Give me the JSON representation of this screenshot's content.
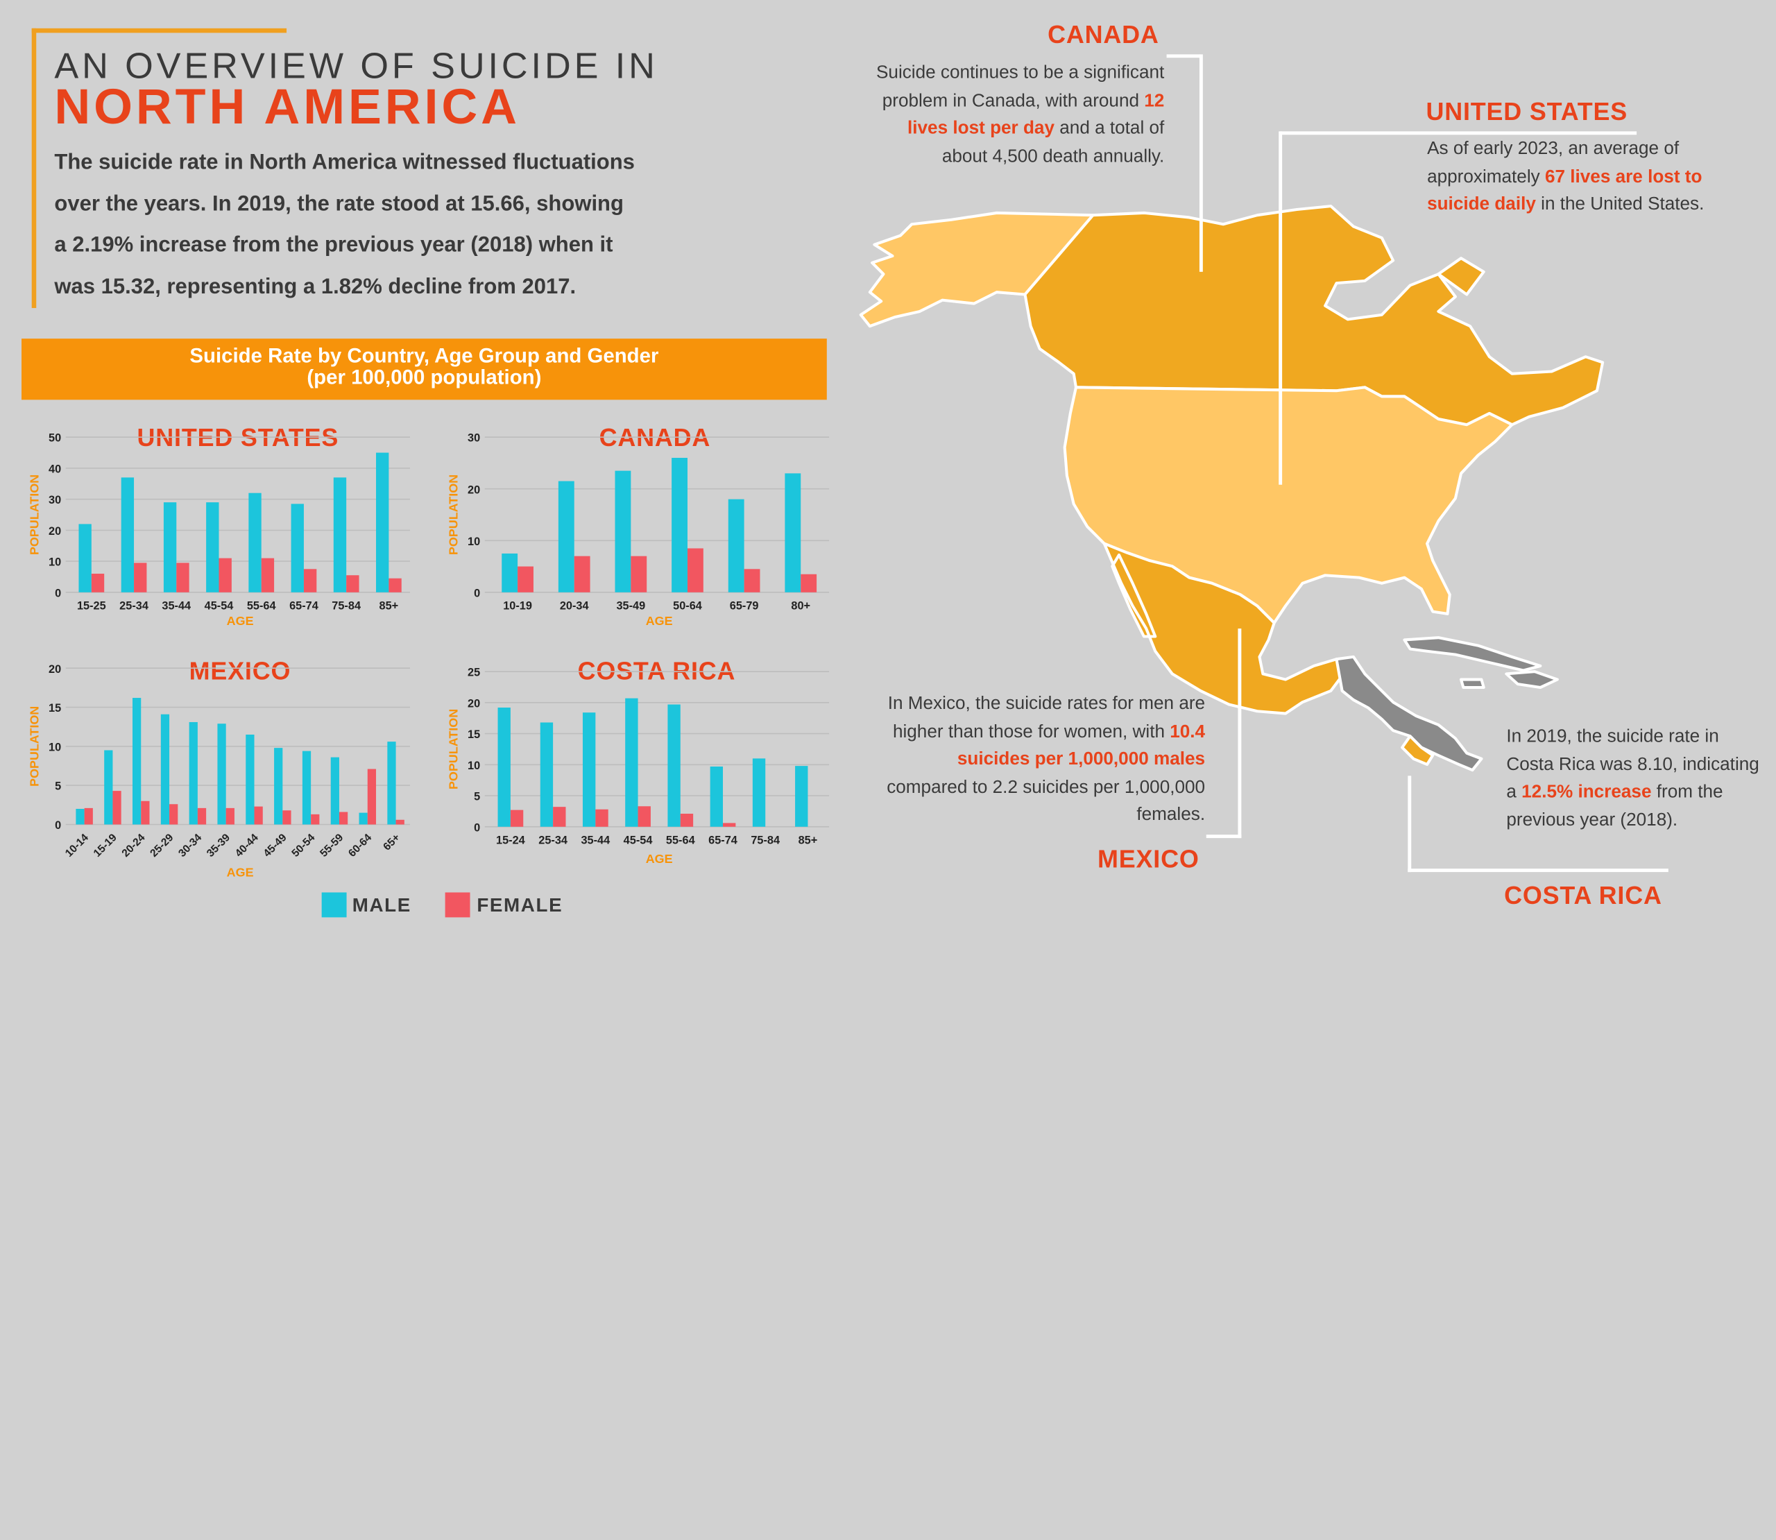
{
  "header": {
    "title_line1": "AN OVERVIEW OF SUICIDE IN",
    "title_line2": "NORTH AMERICA",
    "intro_lines": [
      "The suicide rate in North America witnessed fluctuations",
      "over the years. In 2019, the rate stood at 15.66, showing",
      "a 2.19% increase from the previous year (2018) when it",
      "was 15.32, representing a 1.82% decline from 2017."
    ]
  },
  "banner": {
    "line1": "Suicide Rate by Country, Age Group and Gender",
    "line2": "(per 100,000 population)"
  },
  "colors": {
    "male": "#1cc5dc",
    "female": "#f25660",
    "accent": "#e8431b",
    "orange": "#f7930a",
    "map_dark": "#f0a820",
    "map_light": "#ffc765",
    "map_gray": "#8a8a8a"
  },
  "legend": {
    "male": "MALE",
    "female": "FEMALE"
  },
  "chart_data": [
    {
      "type": "bar",
      "title": "UNITED STATES",
      "xlabel": "AGE",
      "ylabel": "POPULATION",
      "ylim": [
        0,
        50
      ],
      "yticks": [
        "0",
        "10",
        "20",
        "30",
        "40",
        "50"
      ],
      "categories": [
        "15-25",
        "25-34",
        "35-44",
        "45-54",
        "55-64",
        "65-74",
        "75-84",
        "85+"
      ],
      "series": [
        {
          "name": "MALE",
          "values": [
            22,
            37,
            29,
            29,
            32,
            28.5,
            37,
            45
          ]
        },
        {
          "name": "FEMALE",
          "values": [
            6,
            9.5,
            9.5,
            11,
            11,
            7.5,
            5.5,
            4.5
          ]
        }
      ]
    },
    {
      "type": "bar",
      "title": "CANADA",
      "xlabel": "AGE",
      "ylabel": "POPULATION",
      "ylim": [
        0,
        30
      ],
      "yticks": [
        "0",
        "10",
        "20",
        "30"
      ],
      "categories": [
        "10-19",
        "20-34",
        "35-49",
        "50-64",
        "65-79",
        "80+"
      ],
      "series": [
        {
          "name": "MALE",
          "values": [
            7.5,
            21.5,
            23.5,
            26,
            18,
            23
          ]
        },
        {
          "name": "FEMALE",
          "values": [
            5,
            7,
            7,
            8.5,
            4.5,
            3.5
          ]
        }
      ]
    },
    {
      "type": "bar",
      "title": "MEXICO",
      "xlabel": "AGE",
      "ylabel": "POPULATION",
      "ylim": [
        0,
        20
      ],
      "yticks": [
        "0",
        "5",
        "10",
        "15",
        "20"
      ],
      "categories": [
        "10-14",
        "15-19",
        "20-24",
        "25-29",
        "30-34",
        "35-39",
        "40-44",
        "45-49",
        "50-54",
        "55-59",
        "60-64",
        "65+"
      ],
      "series": [
        {
          "name": "MALE",
          "values": [
            2,
            9.5,
            16.2,
            14.1,
            13.1,
            12.9,
            11.5,
            9.8,
            9.4,
            8.6,
            1.5,
            10.6
          ]
        },
        {
          "name": "FEMALE",
          "values": [
            2.1,
            4.3,
            3,
            2.6,
            2.1,
            2.1,
            2.3,
            1.8,
            1.3,
            1.6,
            7.1,
            0.6
          ]
        }
      ]
    },
    {
      "type": "bar",
      "title": "COSTA RICA",
      "xlabel": "AGE",
      "ylabel": "POPULATION",
      "ylim": [
        0,
        25
      ],
      "yticks": [
        "0",
        "5",
        "10",
        "15",
        "20",
        "25"
      ],
      "categories": [
        "15-24",
        "25-34",
        "35-44",
        "45-54",
        "55-64",
        "65-74",
        "75-84",
        "85+"
      ],
      "series": [
        {
          "name": "MALE",
          "values": [
            19.2,
            16.8,
            18.4,
            20.7,
            19.7,
            9.7,
            11,
            9.8
          ]
        },
        {
          "name": "FEMALE",
          "values": [
            2.7,
            3.2,
            2.8,
            3.3,
            2.1,
            0.6,
            0,
            0
          ]
        }
      ]
    }
  ],
  "map": {
    "canada": {
      "label": "CANADA",
      "pre": "Suicide continues to be a significant problem in Canada, with around ",
      "highlight": "12 lives lost per day",
      "post": " and a total of about 4,500 death annually."
    },
    "united_states": {
      "label": "UNITED STATES",
      "pre": "As of early 2023, an average of approximately ",
      "highlight": "67 lives are lost to suicide daily",
      "post": " in the United States."
    },
    "mexico": {
      "label": "MEXICO",
      "pre": "In Mexico, the suicide rates for men are higher than those for women, with ",
      "highlight": "10.4 suicides per 1,000,000 males",
      "post": " compared to 2.2 suicides per 1,000,000 females."
    },
    "costa_rica": {
      "label": "COSTA RICA",
      "pre": "In 2019, the suicide rate in Costa Rica was 8.10, indicating a ",
      "highlight": "12.5% increase",
      "post": " from the previous year (2018)."
    }
  }
}
